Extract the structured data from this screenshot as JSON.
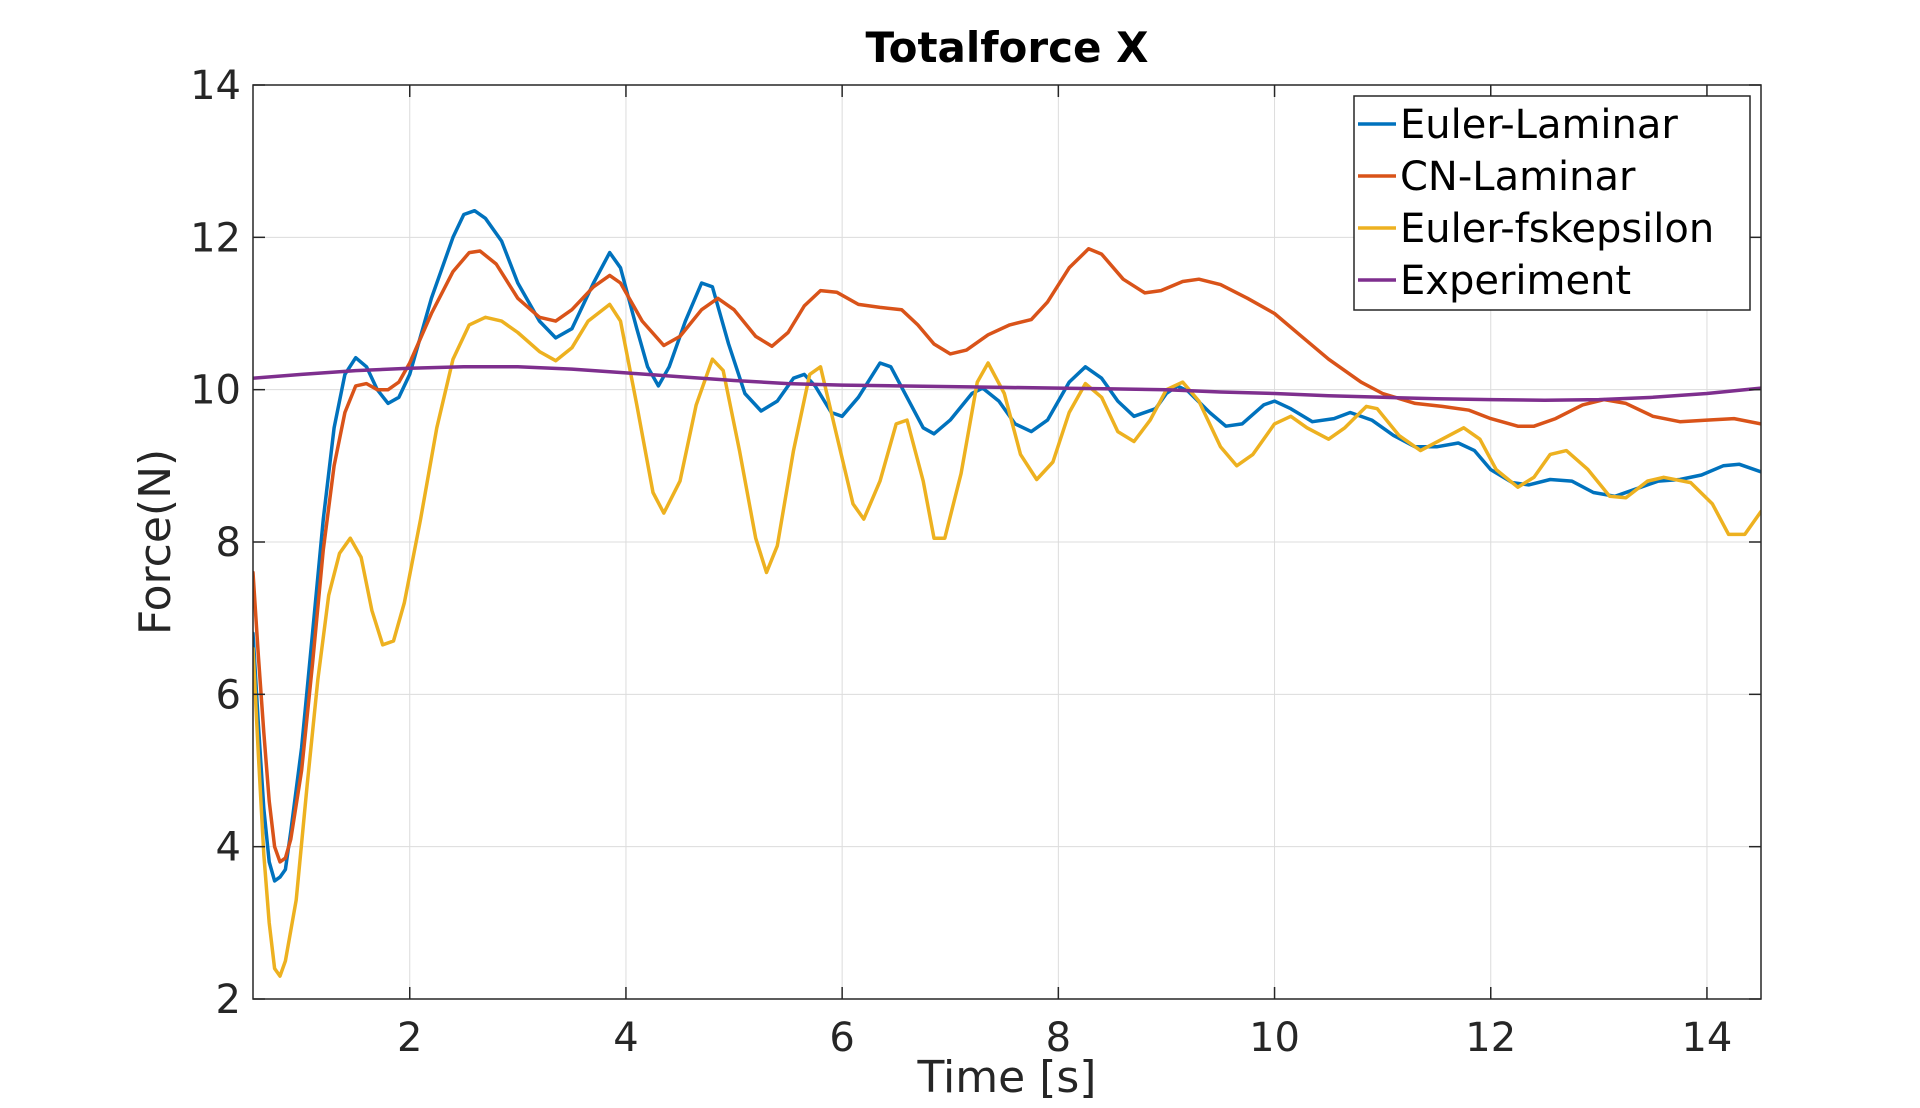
{
  "chart_data": {
    "type": "line",
    "title": "Totalforce X",
    "xlabel": "Time [s]",
    "ylabel": "Force(N)",
    "xlim": [
      0.55,
      14.5
    ],
    "ylim": [
      2,
      14
    ],
    "xticks": [
      2,
      4,
      6,
      8,
      10,
      12,
      14
    ],
    "yticks": [
      2,
      4,
      6,
      8,
      10,
      12,
      14
    ],
    "grid": true,
    "legend_position": "top-right",
    "series": [
      {
        "name": "Euler-Laminar",
        "color": "#0072BD",
        "points": [
          [
            0.55,
            6.8
          ],
          [
            0.6,
            5.6
          ],
          [
            0.65,
            4.5
          ],
          [
            0.7,
            3.8
          ],
          [
            0.75,
            3.55
          ],
          [
            0.8,
            3.6
          ],
          [
            0.85,
            3.7
          ],
          [
            0.9,
            4.2
          ],
          [
            1.0,
            5.3
          ],
          [
            1.1,
            6.8
          ],
          [
            1.2,
            8.3
          ],
          [
            1.3,
            9.5
          ],
          [
            1.4,
            10.2
          ],
          [
            1.5,
            10.42
          ],
          [
            1.6,
            10.3
          ],
          [
            1.7,
            10.0
          ],
          [
            1.8,
            9.82
          ],
          [
            1.9,
            9.9
          ],
          [
            2.0,
            10.2
          ],
          [
            2.2,
            11.2
          ],
          [
            2.4,
            12.0
          ],
          [
            2.5,
            12.3
          ],
          [
            2.6,
            12.35
          ],
          [
            2.7,
            12.25
          ],
          [
            2.85,
            11.95
          ],
          [
            3.0,
            11.4
          ],
          [
            3.2,
            10.9
          ],
          [
            3.35,
            10.68
          ],
          [
            3.5,
            10.8
          ],
          [
            3.7,
            11.4
          ],
          [
            3.85,
            11.8
          ],
          [
            3.95,
            11.6
          ],
          [
            4.1,
            10.8
          ],
          [
            4.2,
            10.3
          ],
          [
            4.3,
            10.05
          ],
          [
            4.4,
            10.3
          ],
          [
            4.55,
            10.9
          ],
          [
            4.7,
            11.4
          ],
          [
            4.8,
            11.35
          ],
          [
            4.95,
            10.6
          ],
          [
            5.1,
            9.95
          ],
          [
            5.25,
            9.72
          ],
          [
            5.4,
            9.85
          ],
          [
            5.55,
            10.15
          ],
          [
            5.65,
            10.2
          ],
          [
            5.75,
            10.05
          ],
          [
            5.9,
            9.7
          ],
          [
            6.0,
            9.65
          ],
          [
            6.15,
            9.9
          ],
          [
            6.35,
            10.35
          ],
          [
            6.45,
            10.3
          ],
          [
            6.6,
            9.9
          ],
          [
            6.75,
            9.5
          ],
          [
            6.85,
            9.42
          ],
          [
            7.0,
            9.6
          ],
          [
            7.2,
            9.95
          ],
          [
            7.3,
            10.02
          ],
          [
            7.45,
            9.85
          ],
          [
            7.6,
            9.55
          ],
          [
            7.75,
            9.45
          ],
          [
            7.9,
            9.6
          ],
          [
            8.1,
            10.1
          ],
          [
            8.25,
            10.3
          ],
          [
            8.4,
            10.15
          ],
          [
            8.55,
            9.85
          ],
          [
            8.7,
            9.65
          ],
          [
            8.9,
            9.75
          ],
          [
            9.0,
            9.95
          ],
          [
            9.1,
            10.05
          ],
          [
            9.2,
            9.98
          ],
          [
            9.4,
            9.7
          ],
          [
            9.55,
            9.52
          ],
          [
            9.7,
            9.55
          ],
          [
            9.9,
            9.8
          ],
          [
            10.0,
            9.85
          ],
          [
            10.15,
            9.75
          ],
          [
            10.35,
            9.58
          ],
          [
            10.55,
            9.62
          ],
          [
            10.7,
            9.7
          ],
          [
            10.9,
            9.6
          ],
          [
            11.1,
            9.4
          ],
          [
            11.3,
            9.25
          ],
          [
            11.5,
            9.25
          ],
          [
            11.7,
            9.3
          ],
          [
            11.85,
            9.2
          ],
          [
            12.0,
            8.95
          ],
          [
            12.2,
            8.78
          ],
          [
            12.35,
            8.75
          ],
          [
            12.55,
            8.82
          ],
          [
            12.75,
            8.8
          ],
          [
            12.95,
            8.65
          ],
          [
            13.15,
            8.6
          ],
          [
            13.35,
            8.7
          ],
          [
            13.55,
            8.8
          ],
          [
            13.75,
            8.82
          ],
          [
            13.95,
            8.88
          ],
          [
            14.15,
            9.0
          ],
          [
            14.3,
            9.02
          ],
          [
            14.5,
            8.92
          ]
        ]
      },
      {
        "name": "CN-Laminar",
        "color": "#D95319",
        "points": [
          [
            0.55,
            7.6
          ],
          [
            0.6,
            6.5
          ],
          [
            0.65,
            5.5
          ],
          [
            0.7,
            4.6
          ],
          [
            0.75,
            4.0
          ],
          [
            0.8,
            3.8
          ],
          [
            0.85,
            3.85
          ],
          [
            0.9,
            4.1
          ],
          [
            1.0,
            5.0
          ],
          [
            1.1,
            6.4
          ],
          [
            1.2,
            7.9
          ],
          [
            1.3,
            9.0
          ],
          [
            1.4,
            9.7
          ],
          [
            1.5,
            10.05
          ],
          [
            1.6,
            10.08
          ],
          [
            1.7,
            10.0
          ],
          [
            1.8,
            10.0
          ],
          [
            1.9,
            10.1
          ],
          [
            2.0,
            10.35
          ],
          [
            2.2,
            11.0
          ],
          [
            2.4,
            11.55
          ],
          [
            2.55,
            11.8
          ],
          [
            2.65,
            11.82
          ],
          [
            2.8,
            11.65
          ],
          [
            3.0,
            11.2
          ],
          [
            3.2,
            10.95
          ],
          [
            3.35,
            10.9
          ],
          [
            3.5,
            11.05
          ],
          [
            3.7,
            11.35
          ],
          [
            3.85,
            11.5
          ],
          [
            3.95,
            11.4
          ],
          [
            4.15,
            10.9
          ],
          [
            4.35,
            10.58
          ],
          [
            4.5,
            10.7
          ],
          [
            4.7,
            11.05
          ],
          [
            4.85,
            11.2
          ],
          [
            5.0,
            11.05
          ],
          [
            5.2,
            10.7
          ],
          [
            5.35,
            10.57
          ],
          [
            5.5,
            10.75
          ],
          [
            5.65,
            11.1
          ],
          [
            5.8,
            11.3
          ],
          [
            5.95,
            11.28
          ],
          [
            6.15,
            11.12
          ],
          [
            6.35,
            11.08
          ],
          [
            6.55,
            11.05
          ],
          [
            6.7,
            10.85
          ],
          [
            6.85,
            10.6
          ],
          [
            7.0,
            10.47
          ],
          [
            7.15,
            10.52
          ],
          [
            7.35,
            10.72
          ],
          [
            7.55,
            10.85
          ],
          [
            7.75,
            10.92
          ],
          [
            7.9,
            11.15
          ],
          [
            8.1,
            11.6
          ],
          [
            8.28,
            11.85
          ],
          [
            8.4,
            11.78
          ],
          [
            8.6,
            11.45
          ],
          [
            8.8,
            11.27
          ],
          [
            8.95,
            11.3
          ],
          [
            9.15,
            11.42
          ],
          [
            9.3,
            11.45
          ],
          [
            9.5,
            11.38
          ],
          [
            9.75,
            11.2
          ],
          [
            10.0,
            11.0
          ],
          [
            10.25,
            10.7
          ],
          [
            10.5,
            10.4
          ],
          [
            10.8,
            10.1
          ],
          [
            11.0,
            9.95
          ],
          [
            11.3,
            9.82
          ],
          [
            11.55,
            9.78
          ],
          [
            11.8,
            9.73
          ],
          [
            12.0,
            9.62
          ],
          [
            12.25,
            9.52
          ],
          [
            12.4,
            9.52
          ],
          [
            12.6,
            9.62
          ],
          [
            12.85,
            9.8
          ],
          [
            13.05,
            9.87
          ],
          [
            13.25,
            9.82
          ],
          [
            13.5,
            9.65
          ],
          [
            13.75,
            9.58
          ],
          [
            14.0,
            9.6
          ],
          [
            14.25,
            9.62
          ],
          [
            14.5,
            9.55
          ]
        ]
      },
      {
        "name": "Euler-fskepsilon",
        "color": "#EDB120",
        "points": [
          [
            0.55,
            6.6
          ],
          [
            0.6,
            5.2
          ],
          [
            0.65,
            3.9
          ],
          [
            0.7,
            3.0
          ],
          [
            0.75,
            2.4
          ],
          [
            0.8,
            2.3
          ],
          [
            0.85,
            2.5
          ],
          [
            0.95,
            3.3
          ],
          [
            1.05,
            4.8
          ],
          [
            1.15,
            6.2
          ],
          [
            1.25,
            7.3
          ],
          [
            1.35,
            7.85
          ],
          [
            1.45,
            8.05
          ],
          [
            1.55,
            7.8
          ],
          [
            1.65,
            7.1
          ],
          [
            1.75,
            6.65
          ],
          [
            1.85,
            6.7
          ],
          [
            1.95,
            7.2
          ],
          [
            2.1,
            8.3
          ],
          [
            2.25,
            9.5
          ],
          [
            2.4,
            10.4
          ],
          [
            2.55,
            10.85
          ],
          [
            2.7,
            10.95
          ],
          [
            2.85,
            10.9
          ],
          [
            3.0,
            10.75
          ],
          [
            3.2,
            10.5
          ],
          [
            3.35,
            10.38
          ],
          [
            3.5,
            10.55
          ],
          [
            3.65,
            10.9
          ],
          [
            3.85,
            11.12
          ],
          [
            3.95,
            10.9
          ],
          [
            4.1,
            9.8
          ],
          [
            4.25,
            8.65
          ],
          [
            4.35,
            8.38
          ],
          [
            4.5,
            8.8
          ],
          [
            4.65,
            9.8
          ],
          [
            4.8,
            10.4
          ],
          [
            4.9,
            10.25
          ],
          [
            5.05,
            9.2
          ],
          [
            5.2,
            8.05
          ],
          [
            5.3,
            7.6
          ],
          [
            5.4,
            7.95
          ],
          [
            5.55,
            9.2
          ],
          [
            5.7,
            10.2
          ],
          [
            5.8,
            10.3
          ],
          [
            5.95,
            9.4
          ],
          [
            6.1,
            8.5
          ],
          [
            6.2,
            8.3
          ],
          [
            6.35,
            8.8
          ],
          [
            6.5,
            9.55
          ],
          [
            6.6,
            9.6
          ],
          [
            6.75,
            8.8
          ],
          [
            6.85,
            8.05
          ],
          [
            6.95,
            8.05
          ],
          [
            7.1,
            8.9
          ],
          [
            7.25,
            10.1
          ],
          [
            7.35,
            10.35
          ],
          [
            7.5,
            9.95
          ],
          [
            7.65,
            9.15
          ],
          [
            7.8,
            8.82
          ],
          [
            7.95,
            9.05
          ],
          [
            8.1,
            9.7
          ],
          [
            8.25,
            10.08
          ],
          [
            8.4,
            9.9
          ],
          [
            8.55,
            9.45
          ],
          [
            8.7,
            9.32
          ],
          [
            8.85,
            9.6
          ],
          [
            9.0,
            10.0
          ],
          [
            9.15,
            10.1
          ],
          [
            9.3,
            9.85
          ],
          [
            9.5,
            9.25
          ],
          [
            9.65,
            9.0
          ],
          [
            9.8,
            9.15
          ],
          [
            10.0,
            9.55
          ],
          [
            10.15,
            9.65
          ],
          [
            10.3,
            9.5
          ],
          [
            10.5,
            9.35
          ],
          [
            10.65,
            9.5
          ],
          [
            10.85,
            9.78
          ],
          [
            10.95,
            9.75
          ],
          [
            11.15,
            9.4
          ],
          [
            11.35,
            9.2
          ],
          [
            11.55,
            9.35
          ],
          [
            11.75,
            9.5
          ],
          [
            11.9,
            9.35
          ],
          [
            12.05,
            8.95
          ],
          [
            12.25,
            8.72
          ],
          [
            12.4,
            8.85
          ],
          [
            12.55,
            9.15
          ],
          [
            12.7,
            9.2
          ],
          [
            12.9,
            8.95
          ],
          [
            13.1,
            8.6
          ],
          [
            13.25,
            8.58
          ],
          [
            13.45,
            8.8
          ],
          [
            13.6,
            8.85
          ],
          [
            13.85,
            8.78
          ],
          [
            14.05,
            8.5
          ],
          [
            14.2,
            8.1
          ],
          [
            14.35,
            8.1
          ],
          [
            14.5,
            8.4
          ]
        ]
      },
      {
        "name": "Experiment",
        "color": "#7E2F8E",
        "points": [
          [
            0.55,
            10.15
          ],
          [
            1.0,
            10.2
          ],
          [
            1.5,
            10.25
          ],
          [
            2.0,
            10.28
          ],
          [
            2.5,
            10.3
          ],
          [
            3.0,
            10.3
          ],
          [
            3.5,
            10.27
          ],
          [
            4.0,
            10.22
          ],
          [
            4.5,
            10.17
          ],
          [
            5.0,
            10.12
          ],
          [
            5.5,
            10.08
          ],
          [
            6.0,
            10.06
          ],
          [
            6.5,
            10.05
          ],
          [
            7.0,
            10.04
          ],
          [
            7.5,
            10.03
          ],
          [
            8.0,
            10.02
          ],
          [
            8.5,
            10.01
          ],
          [
            9.0,
            10.0
          ],
          [
            9.5,
            9.97
          ],
          [
            10.0,
            9.95
          ],
          [
            10.5,
            9.92
          ],
          [
            11.0,
            9.9
          ],
          [
            11.5,
            9.88
          ],
          [
            12.0,
            9.87
          ],
          [
            12.5,
            9.86
          ],
          [
            13.0,
            9.87
          ],
          [
            13.5,
            9.9
          ],
          [
            14.0,
            9.95
          ],
          [
            14.5,
            10.02
          ]
        ]
      }
    ]
  }
}
